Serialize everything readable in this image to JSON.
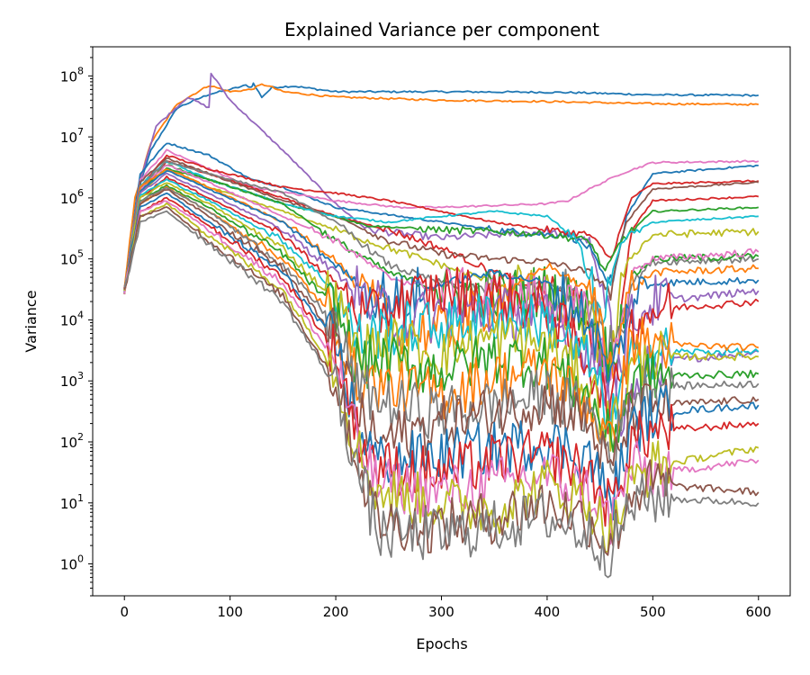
{
  "chart_data": {
    "type": "line",
    "title": "Explained Variance per component",
    "xlabel": "Epochs",
    "ylabel": "Variance",
    "yscale": "log",
    "xlim": [
      -30,
      630
    ],
    "ylim": [
      0.3,
      300000000
    ],
    "xticks": [
      0,
      100,
      200,
      300,
      400,
      500,
      600
    ],
    "yticks": [
      {
        "value": 1,
        "base": "10",
        "exp": "0"
      },
      {
        "value": 10,
        "base": "10",
        "exp": "1"
      },
      {
        "value": 100,
        "base": "10",
        "exp": "2"
      },
      {
        "value": 1000,
        "base": "10",
        "exp": "3"
      },
      {
        "value": 10000,
        "base": "10",
        "exp": "4"
      },
      {
        "value": 100000,
        "base": "10",
        "exp": "5"
      },
      {
        "value": 1000000,
        "base": "10",
        "exp": "6"
      },
      {
        "value": 10000000,
        "base": "10",
        "exp": "7"
      },
      {
        "value": 100000000,
        "base": "10",
        "exp": "8"
      }
    ],
    "grid": false,
    "legend": "none",
    "colors": [
      "#1f77b4",
      "#ff7f0e",
      "#2ca02c",
      "#d62728",
      "#9467bd",
      "#8c564b",
      "#e377c2",
      "#7f7f7f",
      "#bcbd22",
      "#17becf"
    ],
    "series": [
      {
        "color": "#1f77b4",
        "x": [
          0,
          10,
          25,
          50,
          80,
          100,
          115,
          120,
          122,
          130,
          140,
          160,
          200,
          300,
          400,
          430,
          500,
          600
        ],
        "y": [
          30000,
          900000,
          6000000,
          30000000,
          50000000,
          60000000,
          70000000,
          65000000,
          75000000,
          45000000,
          65000000,
          68000000,
          55000000,
          55000000,
          54000000,
          53000000,
          49000000,
          48000000
        ]
      },
      {
        "color": "#ff7f0e",
        "x": [
          0,
          10,
          25,
          50,
          80,
          100,
          120,
          130,
          135,
          150,
          200,
          300,
          400,
          500,
          600
        ],
        "y": [
          30000,
          1000000,
          8000000,
          35000000,
          70000000,
          55000000,
          60000000,
          72000000,
          70000000,
          55000000,
          45000000,
          40000000,
          38000000,
          35000000,
          34000000
        ]
      },
      {
        "color": "#9467bd",
        "x": [
          0,
          15,
          30,
          60,
          80,
          82,
          100,
          150,
          200,
          230,
          300,
          400,
          440,
          460,
          470,
          500,
          600
        ],
        "y": [
          30000,
          2000000,
          15000000,
          45000000,
          30000000,
          110000000,
          40000000,
          6000000,
          800000,
          300000,
          220000,
          280000,
          200000,
          6000,
          300,
          2000,
          3000
        ]
      },
      {
        "color": "#1f77b4",
        "x": [
          0,
          15,
          40,
          80,
          120,
          150,
          200,
          260,
          300,
          350,
          400,
          420,
          440,
          460,
          475,
          500,
          600
        ],
        "y": [
          30000,
          2500000,
          8000000,
          5000000,
          2000000,
          1500000,
          700000,
          500000,
          400000,
          300000,
          250000,
          250000,
          150000,
          30000,
          500000,
          2500000,
          3400000
        ]
      },
      {
        "color": "#e377c2",
        "x": [
          0,
          15,
          40,
          80,
          120,
          200,
          260,
          300,
          350,
          400,
          420,
          440,
          470,
          500,
          600
        ],
        "y": [
          30000,
          2000000,
          6000000,
          3000000,
          1500000,
          900000,
          700000,
          700000,
          750000,
          800000,
          900000,
          1400000,
          2500000,
          3800000,
          4000000
        ]
      },
      {
        "color": "#d62728",
        "x": [
          0,
          15,
          40,
          80,
          150,
          200,
          250,
          300,
          350,
          400,
          440,
          460,
          480,
          500,
          600
        ],
        "y": [
          30000,
          1500000,
          5000000,
          3000000,
          1500000,
          1200000,
          900000,
          600000,
          400000,
          300000,
          250000,
          100000,
          1000000,
          1700000,
          1900000
        ]
      },
      {
        "color": "#d62728",
        "x": [
          0,
          15,
          40,
          80,
          150,
          200,
          250,
          300,
          350,
          400,
          440,
          460,
          480,
          500,
          600
        ],
        "y": [
          25000,
          1200000,
          4000000,
          2500000,
          1000000,
          500000,
          300000,
          150000,
          60000,
          30000,
          10000,
          1000,
          300000,
          900000,
          1050000
        ]
      },
      {
        "color": "#8c564b",
        "x": [
          0,
          15,
          40,
          80,
          150,
          200,
          250,
          300,
          350,
          400,
          440,
          460,
          475,
          500,
          600
        ],
        "y": [
          30000,
          1800000,
          4500000,
          2500000,
          900000,
          500000,
          200000,
          120000,
          100000,
          90000,
          60000,
          30000,
          400000,
          1400000,
          1800000
        ]
      },
      {
        "color": "#2ca02c",
        "x": [
          0,
          15,
          40,
          80,
          150,
          200,
          230,
          300,
          350,
          400,
          440,
          455,
          470,
          500,
          600
        ],
        "y": [
          30000,
          1500000,
          3500000,
          2000000,
          800000,
          500000,
          350000,
          300000,
          280000,
          250000,
          200000,
          60000,
          200000,
          600000,
          700000
        ]
      },
      {
        "color": "#17becf",
        "x": [
          0,
          15,
          40,
          80,
          150,
          200,
          250,
          300,
          350,
          400,
          430,
          450,
          470,
          500,
          600
        ],
        "y": [
          30000,
          1600000,
          4000000,
          2000000,
          800000,
          500000,
          400000,
          500000,
          600000,
          500000,
          200000,
          8000,
          200000,
          400000,
          500000
        ]
      },
      {
        "color": "#bcbd22",
        "x": [
          0,
          15,
          40,
          80,
          150,
          200,
          250,
          300,
          350,
          400,
          440,
          460,
          475,
          500,
          600
        ],
        "y": [
          30000,
          1200000,
          3000000,
          1500000,
          600000,
          300000,
          150000,
          80000,
          40000,
          20000,
          8000,
          1500,
          90000,
          250000,
          280000
        ]
      },
      {
        "color": "#7f7f7f",
        "x": [
          0,
          15,
          40,
          80,
          150,
          200,
          250,
          300,
          350,
          400,
          440,
          460,
          480,
          500,
          600
        ],
        "y": [
          30000,
          1500000,
          4000000,
          2500000,
          1200000,
          400000,
          80000,
          40000,
          30000,
          40000,
          20000,
          3000,
          40000,
          90000,
          100000
        ]
      },
      {
        "color": "#2ca02c",
        "x": [
          0,
          15,
          40,
          80,
          150,
          200,
          250,
          300,
          350,
          400,
          440,
          460,
          480,
          500,
          600
        ],
        "y": [
          30000,
          1300000,
          3000000,
          2000000,
          800000,
          200000,
          60000,
          30000,
          25000,
          30000,
          15000,
          2000,
          50000,
          100000,
          110000
        ]
      },
      {
        "color": "#e377c2",
        "x": [
          0,
          15,
          40,
          80,
          150,
          200,
          250,
          300,
          350,
          400,
          440,
          460,
          480,
          500,
          600
        ],
        "y": [
          30000,
          1400000,
          3500000,
          1800000,
          500000,
          200000,
          50000,
          30000,
          20000,
          25000,
          10000,
          1000,
          60000,
          100000,
          130000
        ]
      },
      {
        "color": "#ff7f0e",
        "x": [
          0,
          15,
          40,
          80,
          150,
          200,
          230,
          260,
          300,
          350,
          400,
          440,
          460,
          480,
          500,
          600
        ],
        "y": [
          30000,
          1500000,
          3000000,
          1500000,
          400000,
          100000,
          20000,
          8000,
          6000,
          20000,
          80000,
          30000,
          2000,
          30000,
          60000,
          70000
        ]
      },
      {
        "color": "#1f77b4",
        "x": [
          0,
          15,
          40,
          80,
          150,
          200,
          230,
          260,
          300,
          350,
          400,
          440,
          460,
          480,
          500,
          600
        ],
        "y": [
          30000,
          1300000,
          2800000,
          1400000,
          400000,
          80000,
          30000,
          20000,
          40000,
          60000,
          40000,
          10000,
          1000,
          20000,
          40000,
          45000
        ]
      },
      {
        "color": "#9467bd",
        "x": [
          0,
          15,
          40,
          80,
          150,
          200,
          230,
          260,
          300,
          350,
          400,
          440,
          460,
          480,
          500,
          600
        ],
        "y": [
          30000,
          1200000,
          2500000,
          1200000,
          300000,
          60000,
          20000,
          10000,
          12000,
          15000,
          10000,
          3000,
          500,
          10000,
          20000,
          30000
        ]
      },
      {
        "color": "#d62728",
        "x": [
          0,
          15,
          40,
          80,
          150,
          200,
          230,
          260,
          300,
          350,
          400,
          440,
          460,
          480,
          500,
          600
        ],
        "y": [
          30000,
          1000000,
          2200000,
          1000000,
          250000,
          40000,
          10000,
          20000,
          30000,
          25000,
          15000,
          2000,
          300,
          8000,
          15000,
          20000
        ]
      },
      {
        "color": "#17becf",
        "x": [
          0,
          15,
          40,
          80,
          150,
          200,
          220,
          250,
          300,
          350,
          400,
          440,
          460,
          480,
          500,
          600
        ],
        "y": [
          30000,
          1100000,
          2000000,
          900000,
          200000,
          30000,
          5000,
          7000,
          8000,
          12000,
          9000,
          2000,
          200,
          2000,
          3000,
          3000
        ]
      },
      {
        "color": "#bcbd22",
        "x": [
          0,
          15,
          40,
          80,
          150,
          200,
          220,
          250,
          300,
          350,
          400,
          440,
          460,
          480,
          500,
          600
        ],
        "y": [
          30000,
          1000000,
          1800000,
          800000,
          150000,
          20000,
          3000,
          4000,
          3000,
          5000,
          4000,
          900,
          150,
          1500,
          2500,
          2500
        ]
      },
      {
        "color": "#2ca02c",
        "x": [
          0,
          15,
          40,
          80,
          150,
          200,
          220,
          250,
          300,
          350,
          400,
          440,
          460,
          480,
          500,
          600
        ],
        "y": [
          30000,
          900000,
          1600000,
          700000,
          120000,
          15000,
          2000,
          2000,
          1500,
          2500,
          2000,
          500,
          100,
          800,
          1200,
          1300
        ]
      },
      {
        "color": "#ff7f0e",
        "x": [
          0,
          15,
          40,
          80,
          150,
          200,
          220,
          250,
          300,
          350,
          400,
          440,
          460,
          480,
          500,
          600
        ],
        "y": [
          30000,
          800000,
          1500000,
          600000,
          100000,
          10000,
          1000,
          800,
          600,
          1200,
          1500,
          400,
          80,
          5000,
          4000,
          3500
        ]
      },
      {
        "color": "#7f7f7f",
        "x": [
          0,
          15,
          40,
          80,
          150,
          200,
          220,
          250,
          300,
          350,
          400,
          440,
          460,
          480,
          500,
          600
        ],
        "y": [
          30000,
          900000,
          1500000,
          600000,
          80000,
          8000,
          800,
          400,
          300,
          400,
          600,
          300,
          60,
          500,
          800,
          900
        ]
      },
      {
        "color": "#8c564b",
        "x": [
          0,
          15,
          40,
          80,
          150,
          200,
          220,
          240,
          300,
          350,
          400,
          440,
          460,
          480,
          500,
          600
        ],
        "y": [
          30000,
          800000,
          1400000,
          500000,
          70000,
          5000,
          300,
          100,
          200,
          300,
          500,
          200,
          30,
          300,
          400,
          500
        ]
      },
      {
        "color": "#1f77b4",
        "x": [
          0,
          15,
          40,
          80,
          150,
          200,
          220,
          240,
          300,
          350,
          400,
          440,
          460,
          480,
          500,
          600
        ],
        "y": [
          30000,
          700000,
          1200000,
          400000,
          60000,
          4000,
          200,
          50,
          60,
          80,
          100,
          60,
          10,
          150,
          300,
          400
        ]
      },
      {
        "color": "#d62728",
        "x": [
          0,
          15,
          40,
          80,
          150,
          200,
          220,
          240,
          300,
          350,
          400,
          440,
          460,
          480,
          500,
          600
        ],
        "y": [
          30000,
          600000,
          1000000,
          350000,
          50000,
          3000,
          150,
          40,
          30,
          50,
          60,
          30,
          8,
          100,
          150,
          200
        ]
      },
      {
        "color": "#e377c2",
        "x": [
          0,
          15,
          40,
          80,
          150,
          200,
          220,
          240,
          300,
          350,
          400,
          440,
          460,
          480,
          500,
          600
        ],
        "y": [
          30000,
          600000,
          900000,
          300000,
          40000,
          2000,
          100,
          20,
          15,
          20,
          30,
          15,
          5,
          40,
          30,
          50
        ]
      },
      {
        "color": "#bcbd22",
        "x": [
          0,
          15,
          40,
          80,
          150,
          200,
          220,
          240,
          300,
          350,
          400,
          440,
          460,
          480,
          500,
          600
        ],
        "y": [
          30000,
          500000,
          800000,
          250000,
          30000,
          1500,
          80,
          15,
          10,
          8,
          20,
          10,
          3,
          20,
          40,
          80
        ]
      },
      {
        "color": "#8c564b",
        "x": [
          0,
          15,
          40,
          80,
          150,
          200,
          220,
          240,
          300,
          350,
          400,
          440,
          460,
          480,
          500,
          600
        ],
        "y": [
          30000,
          500000,
          700000,
          200000,
          25000,
          1000,
          50,
          5,
          4,
          6,
          10,
          5,
          2,
          15,
          20,
          15
        ]
      },
      {
        "color": "#7f7f7f",
        "x": [
          0,
          15,
          40,
          80,
          150,
          200,
          220,
          240,
          300,
          350,
          400,
          440,
          460,
          480,
          500,
          600
        ],
        "y": [
          30000,
          400000,
          600000,
          180000,
          20000,
          800,
          40,
          3,
          3,
          4,
          6,
          3,
          1.5,
          10,
          12,
          10
        ]
      }
    ]
  }
}
